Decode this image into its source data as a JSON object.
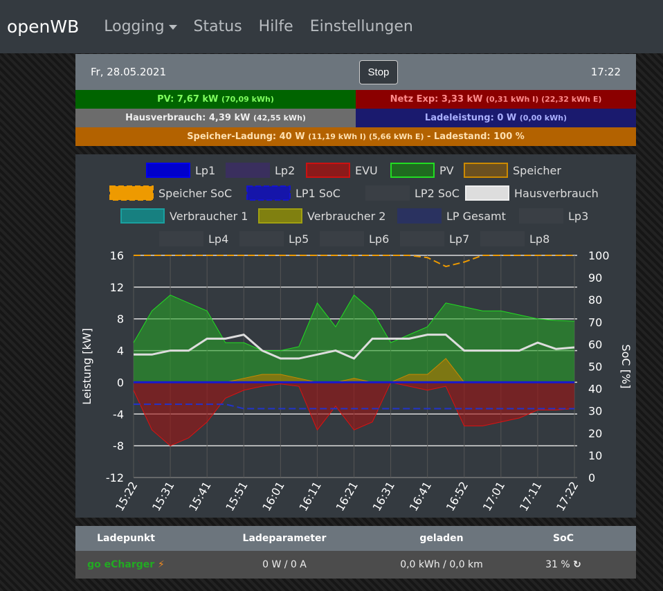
{
  "nav": {
    "brand": "openWB",
    "items": [
      "Logging",
      "Status",
      "Hilfe",
      "Einstellungen"
    ]
  },
  "top": {
    "date": "Fr, 28.05.2021",
    "stop": "Stop",
    "time": "17:22"
  },
  "tiles": {
    "pv": {
      "main": "PV: 7,67 kW",
      "sub": "(70,09 kWh)"
    },
    "netz": {
      "main": "Netz Exp: 3,33 kW",
      "sub": "(0,31 kWh I) (22,32 kWh E)"
    },
    "haus": {
      "main": "Hausverbrauch: 4,39 kW",
      "sub": "(42,55 kWh)"
    },
    "lade": {
      "main": "Ladeleistung: 0 W",
      "sub": "(0,00 kWh)"
    },
    "speicher": {
      "main": "Speicher-Ladung: 40 W",
      "sub": "(11,19 kWh I) (5,66 kWh E)",
      "tail": "- Ladestand: 100 %"
    }
  },
  "colors": {
    "pv_bg": "#006400",
    "netz_bg": "#8b0000",
    "haus_bg": "#6c6c6c",
    "lade_bg": "#1a1a6e",
    "speicher_bg": "#b36200"
  },
  "chart_data": {
    "type": "line",
    "legend": [
      {
        "name": "Lp1",
        "fill": "#0000cc",
        "stroke": "#0000ee"
      },
      {
        "name": "Lp2",
        "fill": "#3a2f5e",
        "stroke": "#3a2f5e"
      },
      {
        "name": "EVU",
        "fill": "#8b1a1a",
        "stroke": "#cc1111"
      },
      {
        "name": "PV",
        "fill": "#1f6b1f",
        "stroke": "#22dd22"
      },
      {
        "name": "Speicher",
        "fill": "#6b5020",
        "stroke": "#cc8a00"
      },
      {
        "name": "Speicher SoC",
        "fill": "#ee9a00",
        "stroke": "#ee9a00",
        "dash": true
      },
      {
        "name": "LP1 SoC",
        "fill": "#1515aa",
        "stroke": "#1515cc",
        "dash": true
      },
      {
        "name": "LP2 SoC",
        "fill": "#3a3f45",
        "stroke": "#3a3f45"
      },
      {
        "name": "Hausverbrauch",
        "fill": "#ddd",
        "stroke": "#eee"
      },
      {
        "name": "Verbraucher 1",
        "fill": "#178080",
        "stroke": "#1aa0a0"
      },
      {
        "name": "Verbraucher 2",
        "fill": "#808010",
        "stroke": "#a0a010"
      },
      {
        "name": "LP Gesamt",
        "fill": "#2a3260",
        "stroke": "#2a3260"
      },
      {
        "name": "Lp3",
        "fill": "#3a3f45",
        "stroke": "#3a3f45"
      },
      {
        "name": "Lp4",
        "fill": "#3a3f45",
        "stroke": "#3a3f45"
      },
      {
        "name": "Lp5",
        "fill": "#3a3f45",
        "stroke": "#3a3f45"
      },
      {
        "name": "Lp6",
        "fill": "#3a3f45",
        "stroke": "#3a3f45"
      },
      {
        "name": "Lp7",
        "fill": "#3a3f45",
        "stroke": "#3a3f45"
      },
      {
        "name": "Lp8",
        "fill": "#3a3f45",
        "stroke": "#3a3f45"
      }
    ],
    "ylabel": "Leistung [kW]",
    "y2label": "SoC [%]",
    "ylim": [
      -12,
      16
    ],
    "yticks": [
      -12,
      -8,
      -4,
      0,
      4,
      8,
      12,
      16
    ],
    "y2lim": [
      0,
      100
    ],
    "y2ticks": [
      0,
      10,
      20,
      30,
      40,
      50,
      60,
      70,
      80,
      90,
      100
    ],
    "xticks": [
      "15:22",
      "15:31",
      "15:41",
      "15:51",
      "16:01",
      "16:11",
      "16:21",
      "16:31",
      "16:41",
      "16:52",
      "17:01",
      "17:11",
      "17:22"
    ],
    "series": [
      {
        "name": "PV",
        "values": [
          5,
          9,
          11,
          10,
          9,
          5,
          5,
          4,
          4,
          4.5,
          10,
          7,
          11,
          9,
          5,
          6,
          7,
          10,
          9.5,
          9,
          9,
          8.5,
          8,
          7.8,
          7.7
        ]
      },
      {
        "name": "Hausverbrauch",
        "values": [
          3.5,
          3.5,
          4,
          4,
          5.5,
          5.5,
          6,
          4,
          3,
          3,
          3.5,
          4,
          3,
          5.5,
          5.5,
          5.5,
          6,
          6,
          4,
          4,
          4,
          4,
          5,
          4.2,
          4.4
        ]
      },
      {
        "name": "EVU",
        "values": [
          -1,
          -6,
          -8,
          -7,
          -5,
          -2,
          -1,
          -0.5,
          -0.2,
          -0.5,
          -6,
          -3,
          -6,
          -5,
          0,
          -0.5,
          -1,
          -0.5,
          -5.5,
          -5.5,
          -5,
          -4.5,
          -3.5,
          -3.5,
          -3.3
        ]
      },
      {
        "name": "Speicher",
        "values": [
          0,
          0,
          0,
          0,
          0,
          0,
          0.5,
          1,
          1,
          0.5,
          0,
          0,
          0.5,
          0,
          0,
          1,
          1,
          3,
          0,
          0,
          0,
          0,
          0,
          0,
          0
        ]
      },
      {
        "name": "Speicher SoC",
        "values": [
          100,
          100,
          100,
          100,
          100,
          100,
          100,
          100,
          100,
          100,
          100,
          100,
          100,
          100,
          100,
          100,
          99,
          95,
          97,
          100,
          100,
          100,
          100,
          100,
          100
        ]
      },
      {
        "name": "LP1 SoC",
        "values": [
          33,
          33,
          33,
          33,
          33,
          33,
          31,
          31,
          31,
          31,
          31,
          31,
          31,
          31,
          31,
          31,
          31,
          31,
          31,
          31,
          31,
          31,
          31,
          31,
          31
        ]
      },
      {
        "name": "LP Gesamt",
        "values": [
          0,
          0,
          0,
          0,
          0,
          0,
          0,
          0,
          0,
          0,
          0,
          0,
          0,
          0,
          0,
          0,
          0,
          0,
          0,
          0,
          0,
          0,
          0,
          0,
          0
        ]
      }
    ]
  },
  "table": {
    "headers": [
      "Ladepunkt",
      "Ladeparameter",
      "geladen",
      "SoC"
    ],
    "row": {
      "name": "go eCharger",
      "params": "0 W / 0 A",
      "charged": "0,0 kWh / 0,0 km",
      "soc": "31 %"
    }
  }
}
